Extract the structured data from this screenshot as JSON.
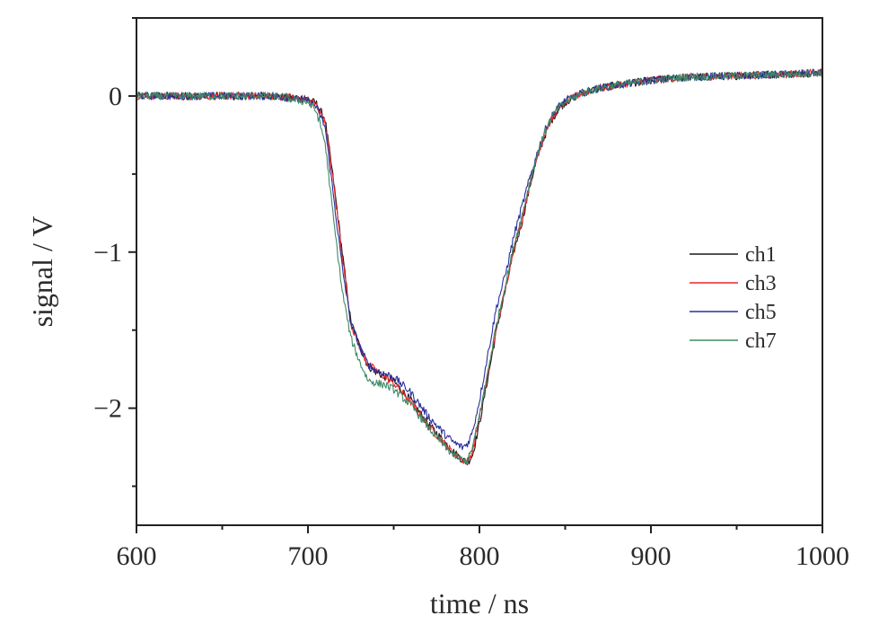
{
  "chart_data": {
    "type": "line",
    "xlabel": "time / ns",
    "ylabel": "signal / V",
    "xlim": [
      600,
      1000
    ],
    "ylim": [
      -2.75,
      0.5
    ],
    "x_ticks": [
      600,
      700,
      800,
      900,
      1000
    ],
    "x_tick_labels": [
      "600",
      "700",
      "800",
      "900",
      "1000"
    ],
    "x_minor_ticks": [
      650,
      750,
      850,
      950
    ],
    "y_ticks": [
      0,
      -1,
      -2
    ],
    "y_tick_labels": [
      "0",
      "−1",
      "−2"
    ],
    "y_minor_ticks": [
      0.5,
      -0.5,
      -1.5,
      -2.5
    ],
    "grid": false,
    "legend_position": "right",
    "series": [
      {
        "name": "ch1",
        "color": "#1a1a1a",
        "x": [
          600,
          640,
          680,
          700,
          705,
          710,
          715,
          720,
          725,
          730,
          735,
          740,
          745,
          750,
          760,
          770,
          780,
          785,
          790,
          793,
          796,
          800,
          805,
          810,
          815,
          820,
          825,
          830,
          835,
          840,
          845,
          850,
          860,
          870,
          880,
          900,
          920,
          950,
          980,
          1000
        ],
        "y": [
          0.0,
          0.0,
          0.0,
          -0.02,
          -0.05,
          -0.15,
          -0.55,
          -1.0,
          -1.45,
          -1.6,
          -1.73,
          -1.77,
          -1.8,
          -1.83,
          -1.95,
          -2.1,
          -2.22,
          -2.28,
          -2.33,
          -2.35,
          -2.3,
          -2.1,
          -1.8,
          -1.5,
          -1.25,
          -1.0,
          -0.8,
          -0.55,
          -0.35,
          -0.2,
          -0.1,
          -0.04,
          0.02,
          0.05,
          0.07,
          0.1,
          0.12,
          0.13,
          0.14,
          0.15
        ]
      },
      {
        "name": "ch3",
        "color": "#e8272a",
        "x": [
          600,
          640,
          680,
          700,
          705,
          710,
          715,
          720,
          725,
          730,
          735,
          740,
          745,
          750,
          760,
          770,
          780,
          785,
          790,
          793,
          796,
          800,
          805,
          810,
          815,
          820,
          825,
          830,
          835,
          840,
          845,
          850,
          860,
          870,
          880,
          900,
          920,
          950,
          980,
          1000
        ],
        "y": [
          0.0,
          0.0,
          0.0,
          -0.02,
          -0.06,
          -0.17,
          -0.57,
          -1.02,
          -1.46,
          -1.6,
          -1.72,
          -1.76,
          -1.8,
          -1.84,
          -1.96,
          -2.11,
          -2.23,
          -2.29,
          -2.33,
          -2.34,
          -2.28,
          -2.05,
          -1.78,
          -1.48,
          -1.24,
          -0.98,
          -0.78,
          -0.53,
          -0.34,
          -0.19,
          -0.1,
          -0.04,
          0.02,
          0.05,
          0.07,
          0.1,
          0.12,
          0.13,
          0.14,
          0.15
        ]
      },
      {
        "name": "ch5",
        "color": "#2b2f9c",
        "x": [
          600,
          640,
          680,
          700,
          705,
          710,
          715,
          720,
          725,
          730,
          735,
          740,
          745,
          750,
          760,
          770,
          780,
          785,
          790,
          793,
          796,
          800,
          805,
          810,
          815,
          820,
          825,
          830,
          835,
          840,
          845,
          850,
          860,
          870,
          880,
          900,
          920,
          950,
          980,
          1000
        ],
        "y": [
          0.0,
          0.0,
          0.0,
          -0.03,
          -0.07,
          -0.2,
          -0.65,
          -1.1,
          -1.45,
          -1.6,
          -1.72,
          -1.76,
          -1.78,
          -1.8,
          -1.9,
          -2.05,
          -2.17,
          -2.22,
          -2.25,
          -2.23,
          -2.15,
          -1.95,
          -1.65,
          -1.35,
          -1.15,
          -0.9,
          -0.7,
          -0.5,
          -0.32,
          -0.17,
          -0.08,
          -0.03,
          0.02,
          0.05,
          0.07,
          0.1,
          0.12,
          0.13,
          0.14,
          0.15
        ]
      },
      {
        "name": "ch7",
        "color": "#3e8a66",
        "x": [
          600,
          640,
          680,
          700,
          705,
          710,
          715,
          720,
          725,
          730,
          735,
          740,
          745,
          750,
          760,
          770,
          780,
          785,
          790,
          793,
          796,
          800,
          805,
          810,
          815,
          820,
          825,
          830,
          835,
          840,
          845,
          850,
          860,
          870,
          880,
          900,
          920,
          950,
          980,
          1000
        ],
        "y": [
          0.0,
          0.0,
          0.0,
          -0.04,
          -0.1,
          -0.3,
          -0.8,
          -1.25,
          -1.55,
          -1.7,
          -1.82,
          -1.84,
          -1.85,
          -1.88,
          -1.98,
          -2.12,
          -2.25,
          -2.3,
          -2.33,
          -2.34,
          -2.25,
          -2.05,
          -1.76,
          -1.46,
          -1.22,
          -0.96,
          -0.76,
          -0.52,
          -0.33,
          -0.18,
          -0.09,
          -0.04,
          0.02,
          0.05,
          0.07,
          0.1,
          0.12,
          0.13,
          0.14,
          0.15
        ]
      }
    ]
  }
}
